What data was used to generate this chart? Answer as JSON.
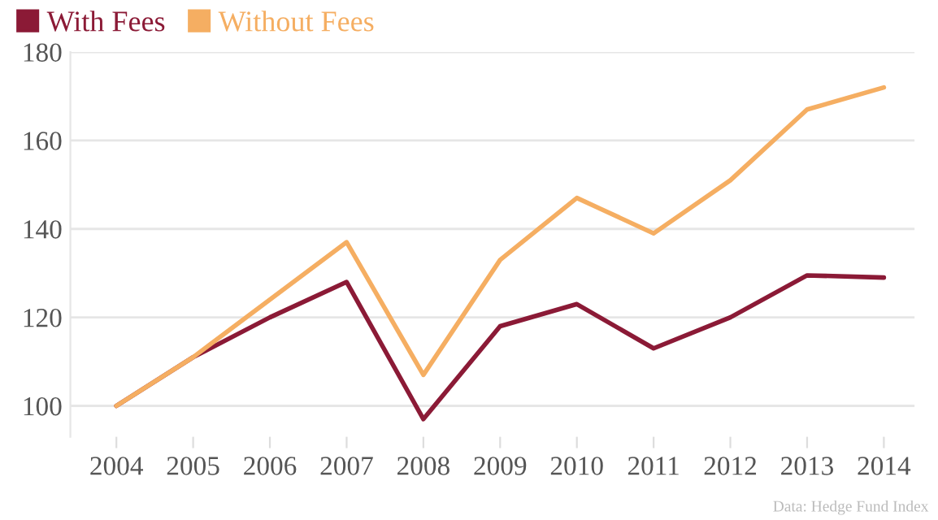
{
  "chart_data": {
    "type": "line",
    "categories": [
      "2004",
      "2005",
      "2006",
      "2007",
      "2008",
      "2009",
      "2010",
      "2011",
      "2012",
      "2013",
      "2014"
    ],
    "series": [
      {
        "name": "With Fees",
        "color": "#8b1a36",
        "values": [
          100,
          111,
          120,
          128,
          97,
          118,
          123,
          113,
          120,
          129.5,
          129
        ]
      },
      {
        "name": "Without Fees",
        "color": "#f5ae62",
        "values": [
          100,
          111,
          124,
          137,
          107,
          133,
          147,
          139,
          151,
          167,
          172
        ]
      }
    ],
    "ylim": [
      93,
      180
    ],
    "yticks": [
      100,
      120,
      140,
      160,
      180
    ],
    "grid": "y",
    "legend": "top left",
    "marker": "none",
    "line_style": "solid",
    "annotations": [
      "Data: Hedge Fund Index"
    ]
  }
}
